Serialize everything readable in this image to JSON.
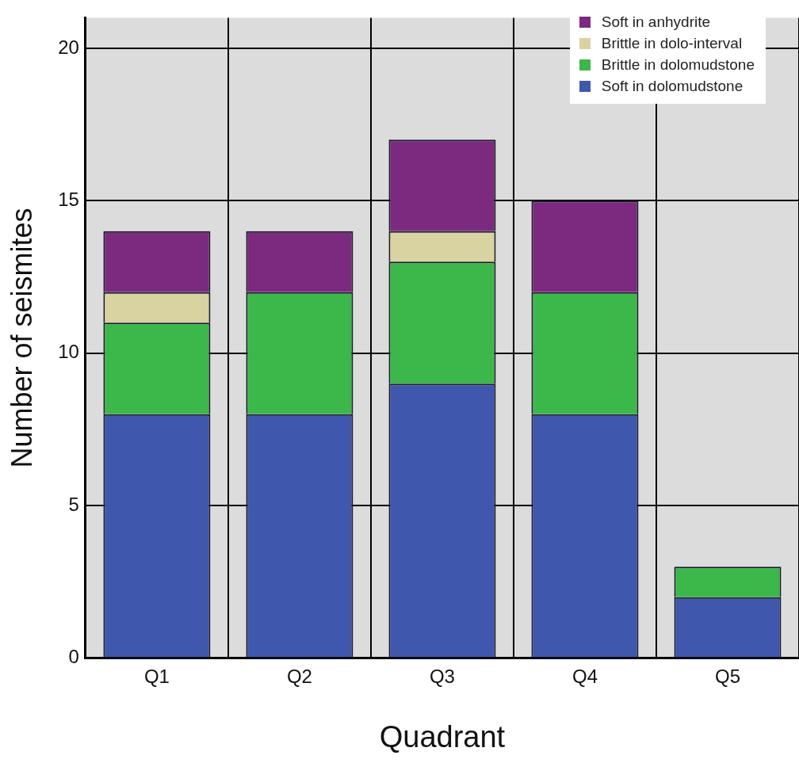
{
  "chart_data": {
    "type": "bar",
    "stacked": true,
    "xlabel": "Quadrant",
    "ylabel": "Number of seismites",
    "categories": [
      "Q1",
      "Q2",
      "Q3",
      "Q4",
      "Q5"
    ],
    "series": [
      {
        "name": "Soft in dolomudstone",
        "color": "#3f57ad",
        "values": [
          8,
          8,
          9,
          8,
          2
        ]
      },
      {
        "name": "Brittle in dolomudstone",
        "color": "#3cb84a",
        "values": [
          3,
          4,
          4,
          4,
          1
        ]
      },
      {
        "name": "Brittle in dolo-interval",
        "color": "#d8d3a0",
        "values": [
          1,
          0,
          1,
          0,
          0
        ]
      },
      {
        "name": "Soft in anhydrite",
        "color": "#7b2a80",
        "values": [
          2,
          2,
          3,
          3,
          0
        ]
      }
    ],
    "ylim": [
      0,
      21
    ],
    "yticks": [
      0,
      5,
      10,
      15,
      20
    ],
    "grid": true,
    "legend": "top right"
  }
}
